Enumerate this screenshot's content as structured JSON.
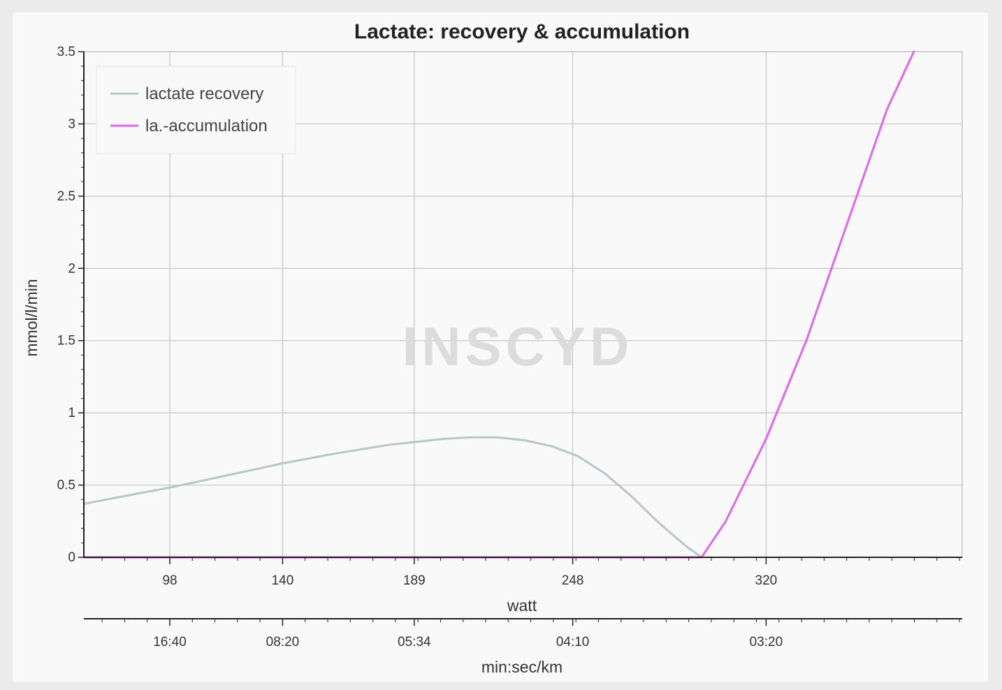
{
  "watermark": "INSCYD",
  "colors": {
    "recovery": "#b8c6c6",
    "accumulation": "#e066f0",
    "grid": "#c4c4c4",
    "axis": "#222222",
    "watermark": "#dcdcdc",
    "watermark_accent": "#f2c9c9"
  },
  "chart_data": {
    "type": "line",
    "title": "Lactate: recovery & accumulation",
    "xlabel": "watt",
    "ylabel": "mmol/l/min",
    "xlim": [
      66,
      393
    ],
    "ylim": [
      0,
      3.5
    ],
    "grid": true,
    "legend_position": "top-left",
    "x_ticks": [
      98,
      140,
      189,
      248,
      320
    ],
    "y_ticks": [
      {
        "value": 0,
        "label": "0"
      },
      {
        "value": 0.5,
        "label": "0.5"
      },
      {
        "value": 1,
        "label": "1"
      },
      {
        "value": 1.5,
        "label": "1.5"
      },
      {
        "value": 2,
        "label": "2"
      },
      {
        "value": 2.5,
        "label": "2.5"
      },
      {
        "value": 3,
        "label": "3"
      },
      {
        "value": 3.5,
        "label": "3.5"
      }
    ],
    "secondary_x_axis": {
      "label": "min:sec/km",
      "tick_labels": [
        "16:40",
        "08:20",
        "05:34",
        "04:10",
        "03:20"
      ]
    },
    "series": [
      {
        "name": "lactate recovery",
        "color": "#b8c6c6",
        "x": [
          66,
          80,
          100,
          120,
          140,
          160,
          180,
          200,
          210,
          220,
          230,
          240,
          250,
          260,
          270,
          280,
          290,
          296
        ],
        "y": [
          0.37,
          0.42,
          0.49,
          0.57,
          0.65,
          0.72,
          0.78,
          0.82,
          0.83,
          0.83,
          0.81,
          0.77,
          0.7,
          0.58,
          0.42,
          0.24,
          0.08,
          0.0
        ]
      },
      {
        "name": "la.-accumulation",
        "color": "#e066f0",
        "x": [
          66,
          100,
          150,
          200,
          250,
          296,
          305,
          320,
          335,
          350,
          365,
          375
        ],
        "y": [
          0,
          0,
          0,
          0,
          0,
          0,
          0.25,
          0.82,
          1.5,
          2.3,
          3.1,
          3.5
        ]
      }
    ]
  }
}
